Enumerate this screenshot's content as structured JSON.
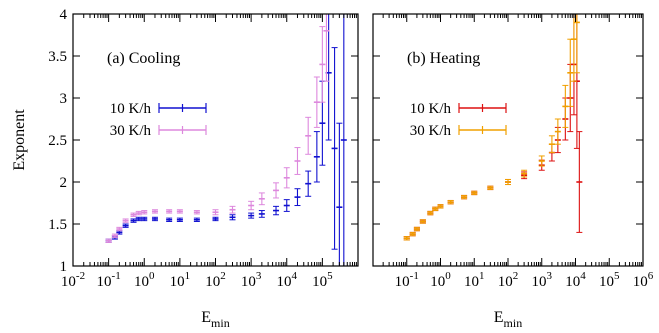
{
  "chart_data": [
    {
      "type": "scatter",
      "panel_label": "(a) Cooling",
      "xlabel": "E_min",
      "ylabel": "Exponent",
      "xscale": "log",
      "xlim": [
        0.01,
        1000000
      ],
      "ylim": [
        1,
        4
      ],
      "x_ticks": [
        0.01,
        0.1,
        1,
        10,
        100,
        1000,
        10000,
        100000
      ],
      "x_tick_labels": [
        {
          "base": "10",
          "exp": "-2"
        },
        {
          "base": "10",
          "exp": "-1"
        },
        {
          "base": "10",
          "exp": "0"
        },
        {
          "base": "10",
          "exp": "1"
        },
        {
          "base": "10",
          "exp": "2"
        },
        {
          "base": "10",
          "exp": "3"
        },
        {
          "base": "10",
          "exp": "4"
        },
        {
          "base": "10",
          "exp": "5"
        }
      ],
      "y_ticks": [
        1,
        1.5,
        2,
        2.5,
        3,
        3.5,
        4
      ],
      "y_tick_labels": [
        "1",
        "1.5",
        "2",
        "2.5",
        "3",
        "3.5",
        "4"
      ],
      "legend_position": "middle-left",
      "series": [
        {
          "name": "10 K/h",
          "color": "#1010d0",
          "points": [
            [
              0.1,
              1.3
            ],
            [
              0.15,
              1.34
            ],
            [
              0.2,
              1.4
            ],
            [
              0.3,
              1.48
            ],
            [
              0.5,
              1.54
            ],
            [
              0.7,
              1.56
            ],
            [
              1,
              1.56
            ],
            [
              2,
              1.56
            ],
            [
              5,
              1.55
            ],
            [
              10,
              1.55
            ],
            [
              30,
              1.55
            ],
            [
              100,
              1.56
            ],
            [
              300,
              1.58
            ],
            [
              1000,
              1.6
            ],
            [
              2000,
              1.62
            ],
            [
              5000,
              1.66
            ],
            [
              10000,
              1.72
            ],
            [
              20000,
              1.82
            ],
            [
              40000,
              1.98
            ],
            [
              70000,
              2.3
            ],
            [
              100000,
              2.7
            ],
            [
              150000,
              3.3
            ],
            [
              220000,
              2.4
            ],
            [
              300000,
              1.7
            ],
            [
              400000,
              2.5
            ]
          ],
          "errors": [
            0.02,
            0.02,
            0.02,
            0.02,
            0.02,
            0.02,
            0.02,
            0.02,
            0.02,
            0.02,
            0.02,
            0.02,
            0.03,
            0.03,
            0.04,
            0.05,
            0.07,
            0.1,
            0.15,
            0.3,
            0.5,
            0.8,
            1.2,
            1.0,
            1.5
          ]
        },
        {
          "name": "30 K/h",
          "color": "#dd88dd",
          "points": [
            [
              0.1,
              1.3
            ],
            [
              0.15,
              1.36
            ],
            [
              0.2,
              1.44
            ],
            [
              0.3,
              1.54
            ],
            [
              0.5,
              1.61
            ],
            [
              0.7,
              1.63
            ],
            [
              1,
              1.64
            ],
            [
              2,
              1.65
            ],
            [
              5,
              1.65
            ],
            [
              10,
              1.65
            ],
            [
              30,
              1.64
            ],
            [
              100,
              1.64
            ],
            [
              300,
              1.67
            ],
            [
              1000,
              1.72
            ],
            [
              2000,
              1.8
            ],
            [
              5000,
              1.9
            ],
            [
              10000,
              2.05
            ],
            [
              20000,
              2.25
            ],
            [
              40000,
              2.55
            ],
            [
              70000,
              2.95
            ],
            [
              100000,
              3.4
            ],
            [
              130000,
              3.8
            ]
          ],
          "errors": [
            0.02,
            0.02,
            0.02,
            0.02,
            0.02,
            0.02,
            0.02,
            0.02,
            0.02,
            0.02,
            0.02,
            0.03,
            0.04,
            0.05,
            0.07,
            0.09,
            0.12,
            0.16,
            0.22,
            0.3,
            0.45,
            0.6
          ]
        }
      ]
    },
    {
      "type": "scatter",
      "panel_label": "(b) Heating",
      "xlabel": "E_min",
      "ylabel": "",
      "xscale": "log",
      "xlim": [
        0.01,
        1000000
      ],
      "ylim": [
        1,
        4
      ],
      "x_ticks": [
        0.1,
        1,
        10,
        100,
        1000,
        10000,
        100000,
        1000000
      ],
      "x_tick_labels": [
        {
          "base": "10",
          "exp": "-1"
        },
        {
          "base": "10",
          "exp": "0"
        },
        {
          "base": "10",
          "exp": "1"
        },
        {
          "base": "10",
          "exp": "2"
        },
        {
          "base": "10",
          "exp": "3"
        },
        {
          "base": "10",
          "exp": "4"
        },
        {
          "base": "10",
          "exp": "5"
        },
        {
          "base": "10",
          "exp": "6"
        }
      ],
      "y_ticks": [
        1,
        1.5,
        2,
        2.5,
        3,
        3.5,
        4
      ],
      "legend_position": "middle-left",
      "series": [
        {
          "name": "10 K/h",
          "color": "#dd1010",
          "points": [
            [
              0.1,
              1.33
            ],
            [
              0.15,
              1.38
            ],
            [
              0.2,
              1.44
            ],
            [
              0.3,
              1.53
            ],
            [
              0.5,
              1.63
            ],
            [
              0.7,
              1.68
            ],
            [
              1,
              1.71
            ],
            [
              2,
              1.76
            ],
            [
              5,
              1.82
            ],
            [
              10,
              1.87
            ],
            [
              30,
              1.93
            ],
            [
              100,
              2.0
            ],
            [
              300,
              2.08
            ],
            [
              1000,
              2.2
            ],
            [
              2000,
              2.35
            ],
            [
              3000,
              2.5
            ],
            [
              5000,
              2.75
            ],
            [
              7000,
              3.0
            ],
            [
              9000,
              3.4
            ],
            [
              11000,
              3.2
            ],
            [
              13000,
              2.0
            ]
          ],
          "errors": [
            0.02,
            0.02,
            0.02,
            0.02,
            0.02,
            0.02,
            0.02,
            0.02,
            0.02,
            0.02,
            0.02,
            0.03,
            0.04,
            0.06,
            0.1,
            0.15,
            0.25,
            0.4,
            0.6,
            0.8,
            0.6
          ]
        },
        {
          "name": "30 K/h",
          "color": "#f0a000",
          "points": [
            [
              0.1,
              1.33
            ],
            [
              0.15,
              1.38
            ],
            [
              0.2,
              1.44
            ],
            [
              0.3,
              1.53
            ],
            [
              0.5,
              1.63
            ],
            [
              0.7,
              1.68
            ],
            [
              1,
              1.71
            ],
            [
              2,
              1.76
            ],
            [
              5,
              1.82
            ],
            [
              10,
              1.87
            ],
            [
              30,
              1.93
            ],
            [
              100,
              2.0
            ],
            [
              300,
              2.1
            ],
            [
              1000,
              2.25
            ],
            [
              2000,
              2.45
            ],
            [
              3000,
              2.6
            ],
            [
              5000,
              2.9
            ],
            [
              7000,
              3.3
            ],
            [
              9000,
              3.7
            ],
            [
              11000,
              3.9
            ]
          ],
          "errors": [
            0.02,
            0.02,
            0.02,
            0.02,
            0.02,
            0.02,
            0.02,
            0.02,
            0.02,
            0.02,
            0.02,
            0.03,
            0.04,
            0.06,
            0.1,
            0.15,
            0.25,
            0.4,
            0.5,
            0.6
          ]
        }
      ]
    }
  ]
}
